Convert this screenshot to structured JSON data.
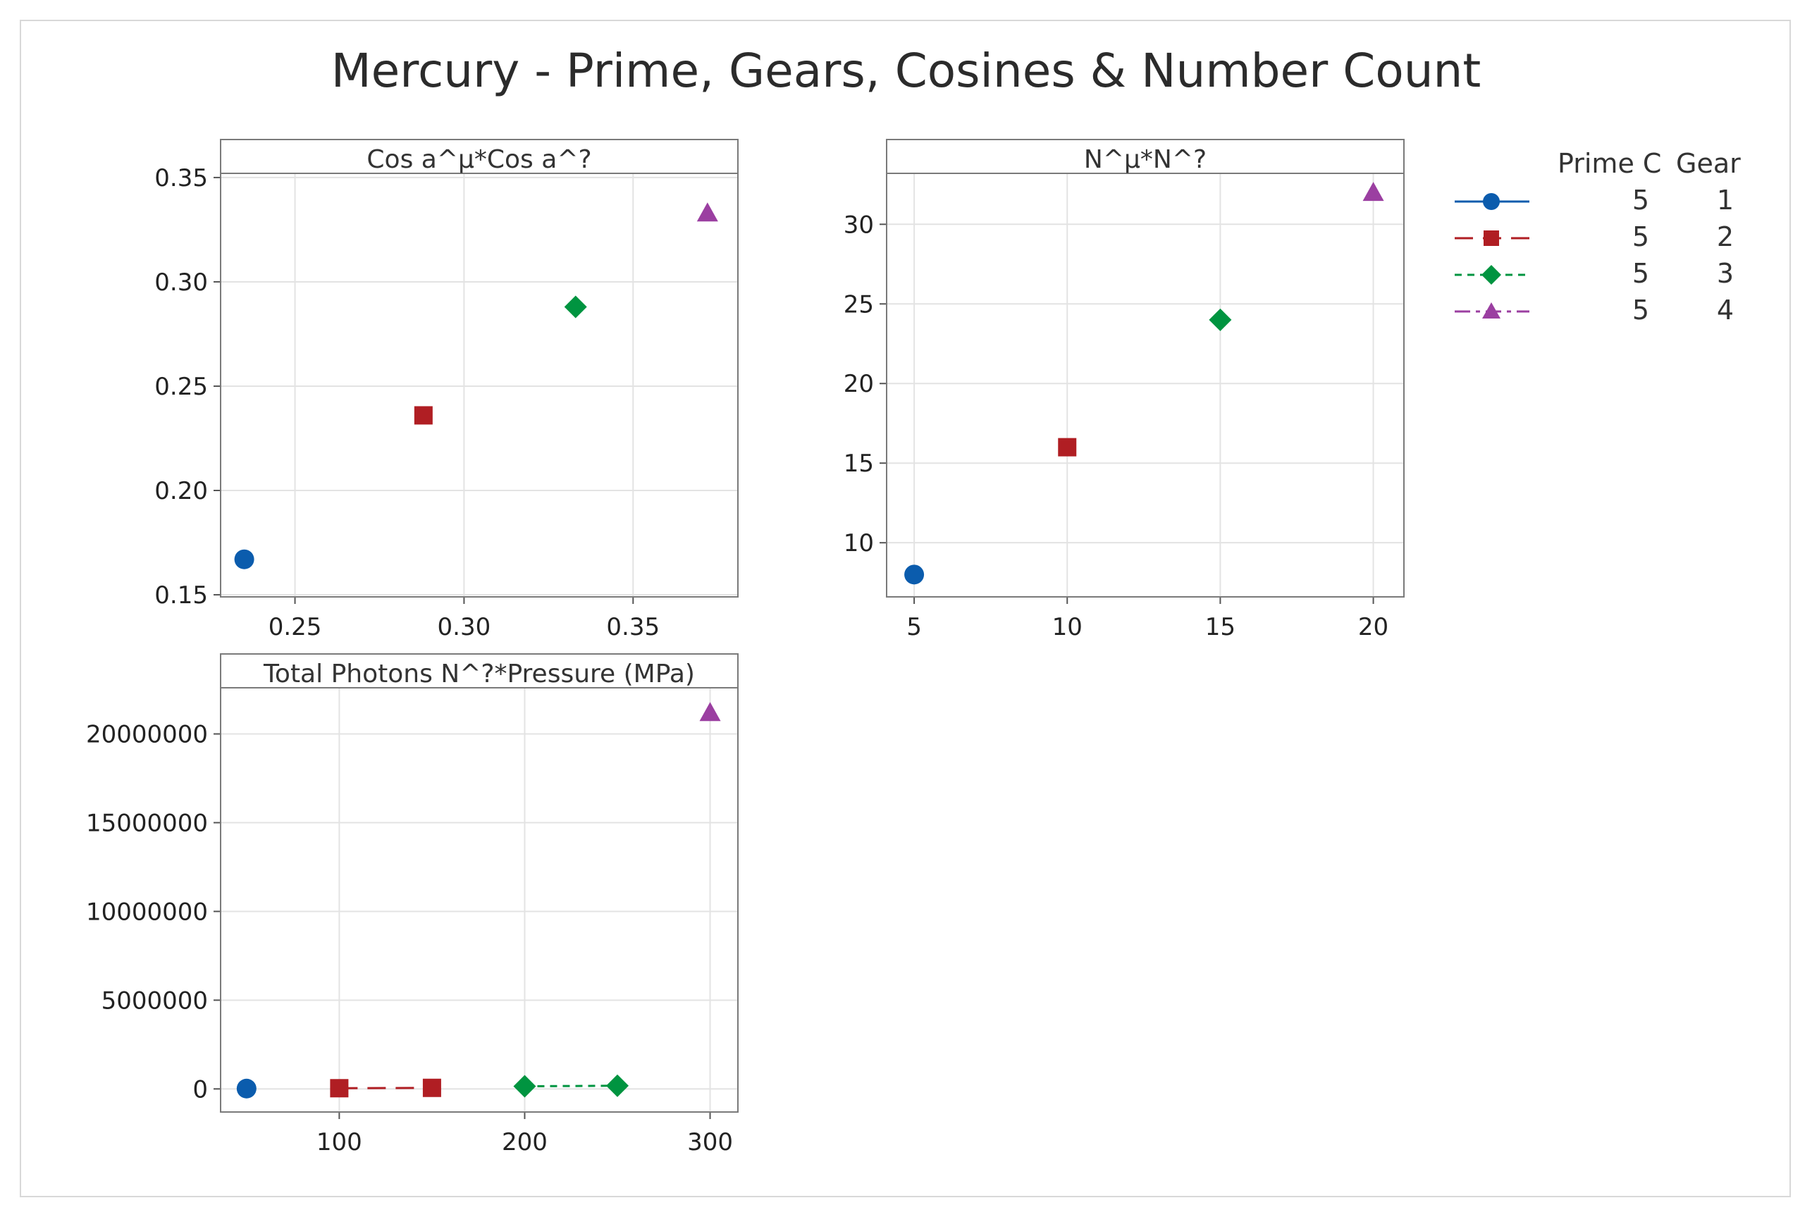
{
  "title": "Mercury - Prime, Gears, Cosines & Number Count",
  "legend": {
    "headers": [
      "Prime C",
      "Gear"
    ],
    "entries": [
      {
        "prime": "5",
        "gear": "1",
        "color": "#0b5cad",
        "marker": "circle",
        "dash": "solid"
      },
      {
        "prime": "5",
        "gear": "2",
        "color": "#b01e23",
        "marker": "square",
        "dash": "longdash"
      },
      {
        "prime": "5",
        "gear": "3",
        "color": "#009440",
        "marker": "diamond",
        "dash": "shortdash"
      },
      {
        "prime": "5",
        "gear": "4",
        "color": "#9b3fa1",
        "marker": "triangle",
        "dash": "dashdot"
      }
    ]
  },
  "chart_data": [
    {
      "type": "scatter",
      "title": "Cos a^µ*Cos a^?",
      "xticks": [
        "0.25",
        "0.30",
        "0.35"
      ],
      "yticks": [
        "0.15",
        "0.20",
        "0.25",
        "0.30",
        "0.35"
      ],
      "xlim": [
        0.228,
        0.381
      ],
      "ylim": [
        0.149,
        0.352
      ],
      "series": [
        {
          "gear": "1",
          "points": [
            [
              0.235,
              0.167
            ]
          ]
        },
        {
          "gear": "2",
          "points": [
            [
              0.288,
              0.236
            ]
          ]
        },
        {
          "gear": "3",
          "points": [
            [
              0.333,
              0.288
            ]
          ]
        },
        {
          "gear": "4",
          "points": [
            [
              0.372,
              0.333
            ]
          ]
        }
      ]
    },
    {
      "type": "scatter",
      "title": "N^µ*N^?",
      "xticks": [
        "5",
        "10",
        "15",
        "20"
      ],
      "yticks": [
        "10",
        "15",
        "20",
        "25",
        "30"
      ],
      "xlim": [
        4.1,
        21.0
      ],
      "ylim": [
        6.6,
        33.2
      ],
      "series": [
        {
          "gear": "1",
          "points": [
            [
              5,
              8
            ]
          ]
        },
        {
          "gear": "2",
          "points": [
            [
              10,
              16
            ]
          ]
        },
        {
          "gear": "3",
          "points": [
            [
              15,
              24
            ]
          ]
        },
        {
          "gear": "4",
          "points": [
            [
              20,
              32
            ]
          ]
        }
      ]
    },
    {
      "type": "line",
      "title": "Total Photons N^?*Pressure (MPa)",
      "xticks": [
        "100",
        "200",
        "300"
      ],
      "yticks": [
        "0",
        "5000000",
        "10000000",
        "15000000",
        "20000000"
      ],
      "xlim": [
        36,
        315
      ],
      "ylim": [
        -1300000,
        22600000
      ],
      "series": [
        {
          "gear": "1",
          "points": [
            [
              50,
              20000
            ]
          ]
        },
        {
          "gear": "2",
          "points": [
            [
              100,
              40000
            ],
            [
              150,
              60000
            ]
          ]
        },
        {
          "gear": "3",
          "points": [
            [
              200,
              150000
            ],
            [
              250,
              180000
            ]
          ]
        },
        {
          "gear": "4",
          "points": [
            [
              300,
              21200000
            ]
          ]
        }
      ]
    }
  ]
}
